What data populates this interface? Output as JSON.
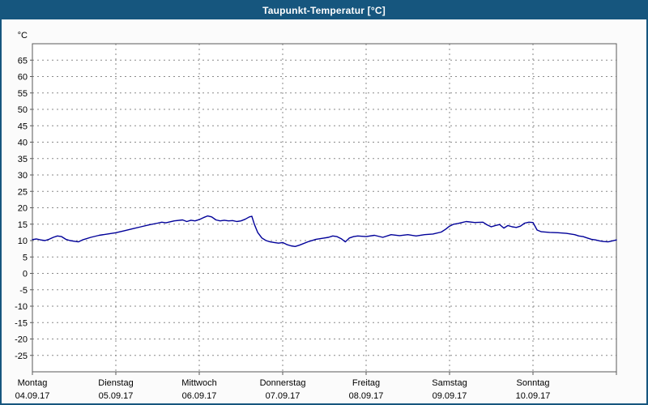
{
  "window": {
    "title": "Taupunkt-Temperatur [°C]"
  },
  "colors": {
    "title_bar": "#16567e",
    "window_border": "#16567e",
    "page_bg": "#fbfbfb",
    "plot_bg": "#ffffff",
    "grid": "#8a8a8a",
    "plot_border": "#5a5a5a",
    "axis_text": "#000000",
    "line": "#000099"
  },
  "chart_data": {
    "type": "line",
    "title": "Taupunkt-Temperatur [°C]",
    "ylabel": "°C",
    "ylim": [
      -30,
      70
    ],
    "y_ticks": [
      65,
      60,
      55,
      50,
      45,
      40,
      35,
      30,
      25,
      20,
      15,
      10,
      5,
      0,
      -5,
      -10,
      -15,
      -20,
      -25
    ],
    "xlim_days": [
      0,
      7
    ],
    "grid": "dashed",
    "legend": "none",
    "categories": [
      {
        "label": "Montag",
        "date": "04.09.17"
      },
      {
        "label": "Dienstag",
        "date": "05.09.17"
      },
      {
        "label": "Mittwoch",
        "date": "06.09.17"
      },
      {
        "label": "Donnerstag",
        "date": "07.09.17"
      },
      {
        "label": "Freitag",
        "date": "08.09.17"
      },
      {
        "label": "Samstag",
        "date": "09.09.17"
      },
      {
        "label": "Sonntag",
        "date": "10.09.17"
      }
    ],
    "series": [
      {
        "name": "Taupunkt-Temperatur",
        "unit": "°C",
        "color": "#000099",
        "points": [
          [
            0.0,
            10.3
          ],
          [
            0.05,
            10.5
          ],
          [
            0.1,
            10.2
          ],
          [
            0.15,
            10.0
          ],
          [
            0.2,
            10.4
          ],
          [
            0.25,
            11.0
          ],
          [
            0.3,
            11.4
          ],
          [
            0.35,
            11.2
          ],
          [
            0.4,
            10.4
          ],
          [
            0.45,
            10.0
          ],
          [
            0.5,
            9.8
          ],
          [
            0.55,
            9.6
          ],
          [
            0.6,
            10.2
          ],
          [
            0.7,
            11.0
          ],
          [
            0.8,
            11.6
          ],
          [
            0.9,
            12.0
          ],
          [
            1.0,
            12.4
          ],
          [
            1.1,
            13.0
          ],
          [
            1.2,
            13.6
          ],
          [
            1.3,
            14.2
          ],
          [
            1.4,
            14.8
          ],
          [
            1.5,
            15.3
          ],
          [
            1.55,
            15.6
          ],
          [
            1.6,
            15.4
          ],
          [
            1.7,
            16.0
          ],
          [
            1.8,
            16.3
          ],
          [
            1.85,
            15.8
          ],
          [
            1.9,
            16.2
          ],
          [
            1.95,
            16.0
          ],
          [
            2.0,
            16.4
          ],
          [
            2.05,
            17.0
          ],
          [
            2.1,
            17.5
          ],
          [
            2.15,
            17.2
          ],
          [
            2.2,
            16.3
          ],
          [
            2.25,
            16.0
          ],
          [
            2.3,
            16.2
          ],
          [
            2.35,
            16.0
          ],
          [
            2.4,
            16.1
          ],
          [
            2.45,
            15.8
          ],
          [
            2.5,
            16.0
          ],
          [
            2.55,
            16.5
          ],
          [
            2.6,
            17.2
          ],
          [
            2.63,
            17.4
          ],
          [
            2.66,
            15.0
          ],
          [
            2.7,
            12.5
          ],
          [
            2.75,
            10.8
          ],
          [
            2.8,
            10.0
          ],
          [
            2.85,
            9.6
          ],
          [
            2.9,
            9.4
          ],
          [
            2.95,
            9.2
          ],
          [
            3.0,
            9.4
          ],
          [
            3.05,
            8.8
          ],
          [
            3.1,
            8.4
          ],
          [
            3.15,
            8.2
          ],
          [
            3.2,
            8.6
          ],
          [
            3.3,
            9.6
          ],
          [
            3.4,
            10.4
          ],
          [
            3.5,
            10.8
          ],
          [
            3.55,
            11.0
          ],
          [
            3.6,
            11.4
          ],
          [
            3.65,
            11.2
          ],
          [
            3.7,
            10.6
          ],
          [
            3.75,
            9.6
          ],
          [
            3.8,
            10.8
          ],
          [
            3.85,
            11.2
          ],
          [
            3.9,
            11.4
          ],
          [
            4.0,
            11.2
          ],
          [
            4.1,
            11.6
          ],
          [
            4.2,
            11.0
          ],
          [
            4.3,
            11.8
          ],
          [
            4.4,
            11.5
          ],
          [
            4.5,
            11.8
          ],
          [
            4.6,
            11.4
          ],
          [
            4.7,
            11.8
          ],
          [
            4.8,
            12.0
          ],
          [
            4.9,
            12.6
          ],
          [
            4.95,
            13.4
          ],
          [
            5.0,
            14.4
          ],
          [
            5.05,
            15.0
          ],
          [
            5.1,
            15.2
          ],
          [
            5.15,
            15.5
          ],
          [
            5.2,
            15.8
          ],
          [
            5.3,
            15.5
          ],
          [
            5.4,
            15.6
          ],
          [
            5.45,
            14.8
          ],
          [
            5.5,
            14.2
          ],
          [
            5.55,
            14.6
          ],
          [
            5.6,
            14.9
          ],
          [
            5.65,
            13.8
          ],
          [
            5.7,
            14.6
          ],
          [
            5.75,
            14.2
          ],
          [
            5.8,
            14.0
          ],
          [
            5.85,
            14.4
          ],
          [
            5.9,
            15.3
          ],
          [
            5.95,
            15.6
          ],
          [
            6.0,
            15.5
          ],
          [
            6.05,
            13.2
          ],
          [
            6.1,
            12.7
          ],
          [
            6.2,
            12.5
          ],
          [
            6.3,
            12.4
          ],
          [
            6.4,
            12.2
          ],
          [
            6.5,
            11.8
          ],
          [
            6.55,
            11.4
          ],
          [
            6.6,
            11.2
          ],
          [
            6.65,
            10.8
          ],
          [
            6.7,
            10.4
          ],
          [
            6.75,
            10.2
          ],
          [
            6.8,
            9.9
          ],
          [
            6.85,
            9.7
          ],
          [
            6.9,
            9.6
          ],
          [
            6.95,
            9.9
          ],
          [
            7.0,
            10.2
          ]
        ]
      }
    ]
  }
}
